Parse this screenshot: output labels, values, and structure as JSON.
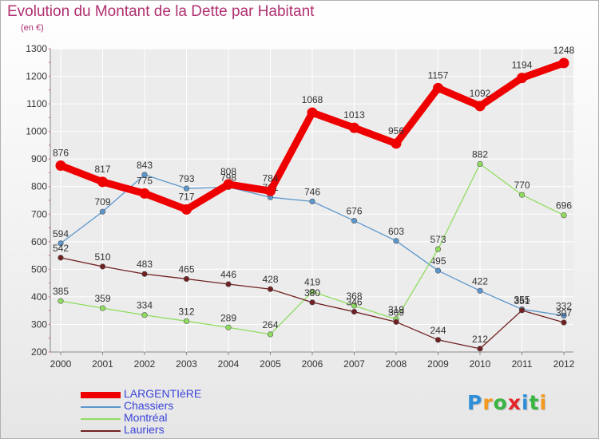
{
  "chart_data": {
    "type": "line",
    "title": "Evolution du Montant de la Dette par Habitant",
    "subtitle": "(en €)",
    "xlabel": "",
    "ylabel": "",
    "ylim": [
      200,
      1300
    ],
    "yticks": [
      200,
      300,
      400,
      500,
      600,
      700,
      800,
      900,
      1000,
      1100,
      1200,
      1300
    ],
    "grid": true,
    "legend_position": "bottom-left",
    "x": [
      "2000",
      "2001",
      "2002",
      "2003",
      "2004",
      "2005",
      "2006",
      "2007",
      "2008",
      "2009",
      "2010",
      "2011",
      "2012"
    ],
    "series": [
      {
        "name": "LARGENTIèRE",
        "color": "#ee0000",
        "values": [
          876,
          817,
          775,
          717,
          808,
          784,
          1068,
          1013,
          956,
          1157,
          1092,
          1194,
          1248
        ]
      },
      {
        "name": "Chassiers",
        "color": "#5b96cc",
        "values": [
          594,
          709,
          843,
          793,
          798,
          761,
          746,
          676,
          603,
          495,
          422,
          355,
          332
        ]
      },
      {
        "name": "Montréal",
        "color": "#90dd60",
        "values": [
          385,
          359,
          334,
          312,
          289,
          264,
          419,
          368,
          319,
          573,
          882,
          770,
          696
        ]
      },
      {
        "name": "Lauriers",
        "color": "#702020",
        "values": [
          542,
          510,
          483,
          465,
          446,
          428,
          380,
          346,
          309,
          244,
          212,
          351,
          307
        ]
      }
    ]
  },
  "logo": {
    "text": "Proxiti"
  }
}
